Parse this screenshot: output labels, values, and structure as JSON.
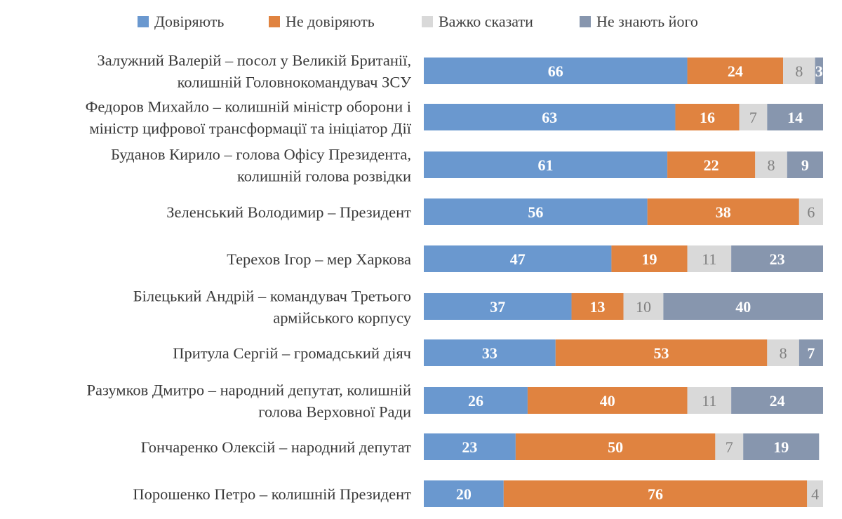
{
  "chart_data": {
    "type": "bar",
    "orientation": "horizontal",
    "stacked": true,
    "legend_position": "top",
    "grid": false,
    "categories": [
      [
        "Залужний Валерій – посол у Великій Британії,",
        "колишній Головнокомандувач ЗСУ"
      ],
      [
        "Федоров Михайло – колишній міністр оборони і",
        "міністр цифрової трансформації та ініціатор Дії"
      ],
      [
        "Буданов Кирило – голова Офісу Президента,",
        "колишній голова розвідки"
      ],
      [
        "Зеленський Володимир – Президент"
      ],
      [
        "Терехов Ігор – мер Харкова"
      ],
      [
        "Білецький Андрій – командувач Третього",
        "армійського корпусу"
      ],
      [
        "Притула Сергій – громадський діяч"
      ],
      [
        "Разумков Дмитро – народний депутат, колишній",
        "голова Верховної Ради"
      ],
      [
        "Гончаренко Олексій – народний депутат"
      ],
      [
        "Порошенко Петро – колишній Президент"
      ]
    ],
    "series": [
      {
        "name": "Довіряють",
        "color": "#6a98cf",
        "label_style": "dark",
        "values": [
          66,
          63,
          61,
          56,
          47,
          37,
          33,
          26,
          23,
          20
        ]
      },
      {
        "name": "Не довіряють",
        "color": "#e08340",
        "label_style": "dark",
        "values": [
          24,
          16,
          22,
          38,
          19,
          13,
          53,
          40,
          50,
          76
        ]
      },
      {
        "name": "Важко сказати",
        "color": "#d9d9d9",
        "label_style": "light",
        "values": [
          8,
          7,
          8,
          6,
          11,
          10,
          8,
          11,
          7,
          4
        ]
      },
      {
        "name": "Не знають його",
        "color": "#8796ae",
        "label_style": "dark",
        "values": [
          3,
          14,
          9,
          0,
          23,
          40,
          7,
          24,
          19,
          0
        ]
      }
    ]
  }
}
